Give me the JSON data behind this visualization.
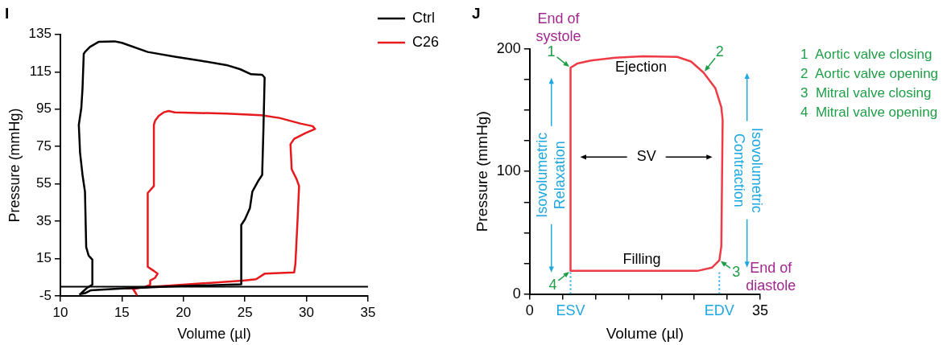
{
  "chart_data": [
    {
      "type": "line",
      "title": "I",
      "xlabel": "Volume (µl)",
      "ylabel": "Pressure (mmHg)",
      "xlim": [
        10,
        35
      ],
      "xticks": [
        10,
        15,
        20,
        25,
        30,
        35
      ],
      "ylim": [
        -5,
        135
      ],
      "yticks": [
        -5,
        15,
        35,
        55,
        75,
        95,
        115,
        135
      ],
      "grid": false,
      "legend": "top right",
      "marker": "none",
      "line_style": "solid",
      "ref_lines": [
        {
          "axis": "y",
          "value": 0,
          "color": "#000000"
        }
      ],
      "series": [
        {
          "name": "Ctrl",
          "color": "#000000",
          "x": [
            11.6,
            12.0,
            12.45,
            15,
            19.3,
            24.7,
            24.7,
            25,
            25.4,
            25.6,
            26.1,
            26.4,
            26.5,
            26.6,
            26.4,
            25.5,
            24.6,
            23.5,
            21.4,
            19.3,
            17.1,
            15,
            14.4,
            13.1,
            12.4,
            12,
            11.9,
            11.8,
            11.7,
            11.5,
            11.6,
            11.8,
            12,
            12.1,
            12.3,
            12.6,
            12.6,
            12.2,
            11.7
          ],
          "values": [
            -4,
            -3.5,
            -2,
            -1,
            0.2,
            1.2,
            33,
            36,
            41.9,
            50.8,
            56.8,
            59.8,
            83.6,
            111.9,
            113.4,
            113.7,
            116.4,
            118.6,
            120.9,
            123.1,
            125.6,
            130.5,
            131.3,
            131,
            128.3,
            125.6,
            124.6,
            106,
            95.5,
            86.6,
            71.7,
            59.8,
            50.8,
            21.1,
            16.6,
            14.4,
            1,
            -0.5,
            -3.5
          ]
        },
        {
          "name": "C26",
          "color": "#e8191c",
          "x": [
            15.4,
            24.8,
            25.9,
            26.6,
            29,
            29.1,
            29.3,
            29.4,
            29.2,
            28.8,
            28.7,
            29,
            29.9,
            30.7,
            30.5,
            29.5,
            27.8,
            26.3,
            23.5,
            19.3,
            18.8,
            18.4,
            18,
            17.7,
            17.6,
            17.6,
            17.1,
            17.1,
            17.6,
            17.9,
            17.7,
            17.3,
            17.3,
            16.9,
            15.9,
            16.2,
            16
          ],
          "values": [
            -1,
            3.2,
            3.9,
            6.9,
            7.6,
            12.1,
            38.9,
            53.8,
            57.5,
            62.8,
            76.2,
            79.1,
            82.1,
            84.4,
            85.9,
            87.3,
            90.3,
            91.8,
            92.6,
            93.3,
            94,
            93.3,
            91.4,
            88.8,
            86.6,
            53.8,
            50.1,
            10.6,
            8.4,
            6.9,
            4.7,
            3.2,
            1,
            -0.1,
            -1.3,
            -4.3,
            -2.1
          ]
        }
      ]
    },
    {
      "type": "line",
      "title": "J",
      "xlabel": "Volume (µl)",
      "ylabel": "Pressure (mmHg)",
      "xlim": [
        0,
        35
      ],
      "xticks": [
        0,
        {
          "value": 5,
          "label": null
        },
        {
          "value": 10,
          "label": null
        },
        {
          "value": 15,
          "label": null
        },
        {
          "value": 20,
          "label": null
        },
        {
          "value": 25,
          "label": null
        },
        {
          "value": 30,
          "label": null
        },
        35
      ],
      "ylim": [
        0,
        200
      ],
      "yticks": [
        0,
        {
          "value": 25,
          "label": null
        },
        {
          "value": 50,
          "label": null
        },
        {
          "value": 75,
          "label": null
        },
        100,
        {
          "value": 125,
          "label": null
        },
        {
          "value": 150,
          "label": null
        },
        {
          "value": 175,
          "label": null
        },
        200
      ],
      "grid": false,
      "legend": false,
      "marker": "none",
      "line_style": "solid",
      "ref_lines": [
        {
          "axis": "x",
          "value": 6.2,
          "label": "ESV",
          "color": "#1ea7e1",
          "line_style": "dotted"
        },
        {
          "axis": "x",
          "value": 28.8,
          "label": "EDV",
          "color": "#1ea7e1",
          "line_style": "dotted"
        }
      ],
      "series": [
        {
          "color": "#ee3b45",
          "x": [
            16,
            6.2,
            6.2,
            7.2,
            9.3,
            13,
            17.2,
            22.4,
            24.5,
            26.4,
            28.2,
            29.1,
            29.3,
            29.2,
            29.1,
            28.8,
            27.7,
            25.6,
            16.1
          ],
          "values": [
            19,
            19,
            184.6,
            188,
            190.5,
            192.8,
            194,
            193.5,
            189.7,
            180.7,
            167.8,
            152.4,
            142,
            90.6,
            39,
            27.5,
            21.6,
            19,
            19
          ]
        }
      ],
      "annotations": [
        "Ejection",
        "Filling",
        "SV",
        "Isovolumetric Relaxation",
        "Isovolumetric Contraction",
        {
          "text": "1",
          "x": 6.2,
          "y": 184.6
        },
        {
          "text": "2",
          "x": 26.4,
          "y": 180.7
        },
        {
          "text": "3",
          "x": 28.8,
          "y": 27.5
        },
        {
          "text": "4",
          "x": 6.2,
          "y": 19
        },
        {
          "text": "End of systole",
          "x": 6.2,
          "y": 184.6
        },
        {
          "text": "End of diastole",
          "x": 28.8,
          "y": 27.5
        },
        "1  Aortic valve closing",
        "2  Aortic valve opening",
        "3  Mitral valve closing",
        "4  Mitral valve opening"
      ]
    }
  ]
}
